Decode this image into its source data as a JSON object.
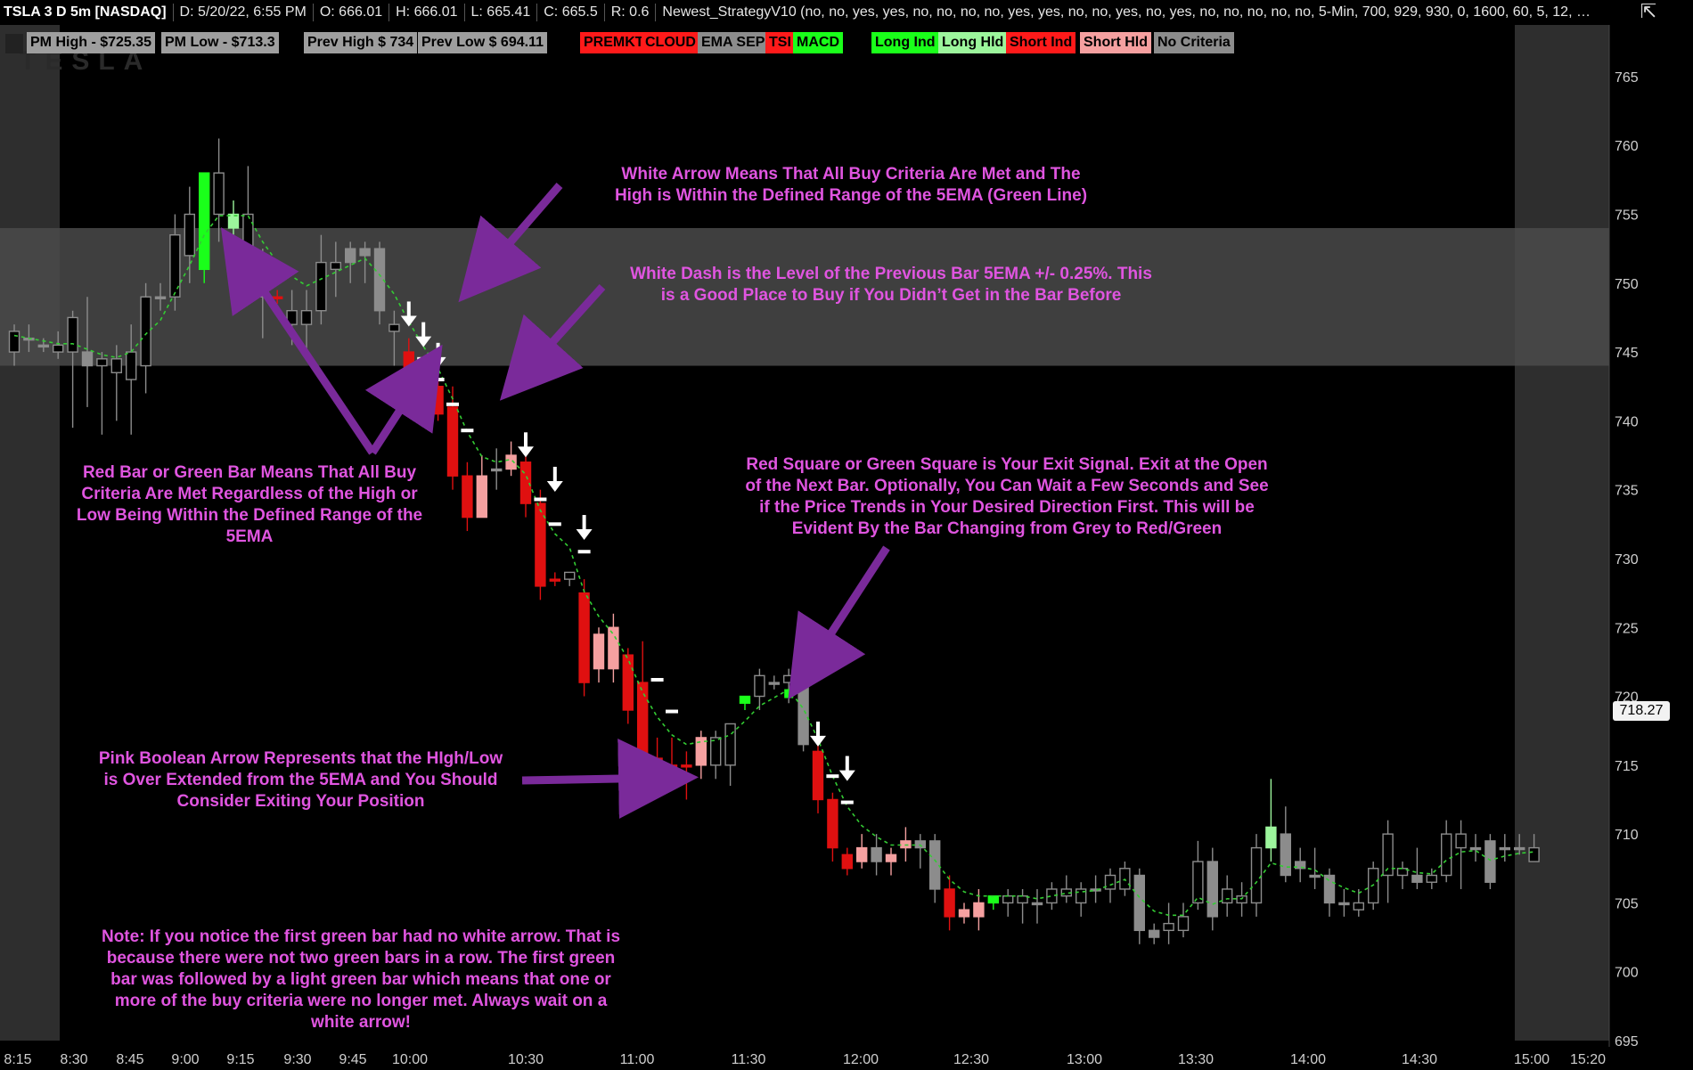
{
  "header": {
    "symbol": "TSLA 3 D 5m [NASDAQ]",
    "date": "D: 5/20/22, 6:55 PM",
    "open": "O: 666.01",
    "high": "H: 666.01",
    "low": "L: 665.41",
    "close": "C: 665.5",
    "range": "R: 0.6",
    "study": "Newest_StrategyV10 (no, no, yes, yes, no, no, no, no, yes, yes, no, no, yes, no, yes, no, no, no, no, no, 5-Min, 700, 929, 930, 0, 1600, 60, 5, 12, 34,..."
  },
  "watermark": "TESLA",
  "labels": [
    {
      "text": "PM High - $725.35",
      "bg": "#9e9e9e",
      "fg": "#000000"
    },
    {
      "text": "PM Low - $713.3",
      "bg": "#9e9e9e",
      "fg": "#000000"
    },
    {
      "text": "Prev High $ 734",
      "bg": "#9e9e9e",
      "fg": "#000000"
    },
    {
      "text": "Prev Low $ 694.11",
      "bg": "#9e9e9e",
      "fg": "#000000"
    },
    {
      "text": "PREMKT",
      "bg": "#ff1a1a",
      "fg": "#000000"
    },
    {
      "text": "CLOUD",
      "bg": "#ff1a1a",
      "fg": "#000000"
    },
    {
      "text": "EMA SEP",
      "bg": "#8c8c8c",
      "fg": "#000000"
    },
    {
      "text": "TSI",
      "bg": "#ff1a1a",
      "fg": "#000000"
    },
    {
      "text": "MACD",
      "bg": "#1aff1a",
      "fg": "#000000"
    },
    {
      "text": "Long Ind",
      "bg": "#1aff1a",
      "fg": "#000000"
    },
    {
      "text": "Long Hld",
      "bg": "#9cf59c",
      "fg": "#000000"
    },
    {
      "text": "Short Ind",
      "bg": "#ff1a1a",
      "fg": "#000000"
    },
    {
      "text": "Short Hld",
      "bg": "#f5a0a0",
      "fg": "#000000"
    },
    {
      "text": "No Criteria",
      "bg": "#8c8c8c",
      "fg": "#000000"
    }
  ],
  "price_tag": "718.27",
  "notes": {
    "white_arrow": "White Arrow Means That All Buy Criteria Are Met and The\nHigh is Within the Defined Range of the 5EMA (Green Line)",
    "white_dash": "White Dash is the Level of the Previous Bar 5EMA +/- 0.25%. This\nis a Good Place to Buy if You Didn’t Get in the Bar Before",
    "red_green_bar": "Red Bar or Green Bar Means That All Buy\nCriteria Are Met Regardless of the High or\nLow Being Within the Defined Range of the\n5EMA",
    "exit_square": "Red Square or Green Square is Your Exit Signal. Exit at the Open\nof the Next Bar. Optionally, You Can Wait a Few Seconds and See\nif the Price Trends in Your Desired Direction First. This will be\nEvident By the Bar Changing from Grey to Red/Green",
    "pink_arrow": "Pink Boolean Arrow Represents that the HIgh/Low\nis Over Extended from the 5EMA and You Should\nConsider Exiting Your Position",
    "first_green": "Note: If you notice the first green bar had no white arrow. That is\nbecause there were not two green bars in a row. The first green\nbar was followed by a light green bar which means that one or\nmore of the buy criteria were no longer met. Always wait on a\nwhite arrow!"
  },
  "colors": {
    "background": "#000000",
    "cloud_band": "#4a4a4a",
    "premarket_shade": "#2e2e2e",
    "ema": "#33cc33",
    "annotation": "#e055e0",
    "arrow": "#7a2a9a",
    "candle_grey": "#8c8c8c",
    "candle_red": "#e01010",
    "candle_pink": "#f5a0a0",
    "candle_green": "#1aff1a",
    "candle_lightgreen": "#9cf59c"
  },
  "chart_data": {
    "type": "candlestick",
    "title": "TSLA 3 D 5m [NASDAQ]",
    "ylim": [
      695,
      767
    ],
    "y_ticks": [
      695,
      700,
      705,
      710,
      715,
      720,
      725,
      730,
      735,
      740,
      745,
      750,
      755,
      760,
      765
    ],
    "x_ticks": [
      "8:15",
      "8:30",
      "8:45",
      "9:00",
      "9:15",
      "9:30",
      "9:45",
      "10:00",
      "10:30",
      "11:00",
      "11:30",
      "12:00",
      "12:30",
      "13:00",
      "13:30",
      "14:00",
      "14:30",
      "15:00",
      "15:20"
    ],
    "cloud_band": [
      744,
      754
    ],
    "current_price": 718.27,
    "candles": [
      {
        "o": 745,
        "h": 747,
        "l": 744,
        "c": 746.5,
        "col": "grey"
      },
      {
        "o": 746,
        "h": 747,
        "l": 745,
        "c": 746,
        "col": "grey"
      },
      {
        "o": 745.5,
        "h": 746,
        "l": 745,
        "c": 745.5,
        "col": "grey"
      },
      {
        "o": 745,
        "h": 746.5,
        "l": 744.5,
        "c": 745.5,
        "col": "grey"
      },
      {
        "o": 745,
        "h": 748,
        "l": 739.5,
        "c": 747.5,
        "col": "grey"
      },
      {
        "o": 745,
        "h": 749,
        "l": 741,
        "c": 744,
        "col": "grey"
      },
      {
        "o": 744,
        "h": 745,
        "l": 739,
        "c": 744.5,
        "col": "grey"
      },
      {
        "o": 743.5,
        "h": 745.5,
        "l": 740,
        "c": 744.5,
        "col": "grey"
      },
      {
        "o": 743,
        "h": 747,
        "l": 739,
        "c": 745,
        "col": "grey"
      },
      {
        "o": 744,
        "h": 750,
        "l": 742,
        "c": 749,
        "col": "grey"
      },
      {
        "o": 749,
        "h": 750,
        "l": 748,
        "c": 749,
        "col": "grey"
      },
      {
        "o": 749,
        "h": 755,
        "l": 748,
        "c": 753.5,
        "col": "grey"
      },
      {
        "o": 752,
        "h": 757,
        "l": 750,
        "c": 755,
        "col": "grey"
      },
      {
        "o": 751,
        "h": 758,
        "l": 750,
        "c": 758,
        "col": "green"
      },
      {
        "o": 755,
        "h": 760.5,
        "l": 753,
        "c": 758,
        "col": "grey"
      },
      {
        "o": 754,
        "h": 756,
        "l": 753,
        "c": 755,
        "col": "lightgreen"
      },
      {
        "o": 752.5,
        "h": 758.5,
        "l": 751,
        "c": 755,
        "col": "grey"
      },
      {
        "o": 751,
        "h": 752.5,
        "l": 746,
        "c": 749,
        "col": "grey"
      },
      {
        "o": 749,
        "h": 749.5,
        "l": 748.5,
        "c": 749,
        "col": "red"
      },
      {
        "o": 747,
        "h": 749.5,
        "l": 745.5,
        "c": 748,
        "col": "grey"
      },
      {
        "o": 747,
        "h": 749.5,
        "l": 745,
        "c": 748,
        "col": "grey"
      },
      {
        "o": 748,
        "h": 753.5,
        "l": 747,
        "c": 751.5,
        "col": "grey"
      },
      {
        "o": 751,
        "h": 753,
        "l": 749,
        "c": 751.5,
        "col": "grey"
      },
      {
        "o": 752.5,
        "h": 753,
        "l": 750,
        "c": 751.5,
        "col": "grey"
      },
      {
        "o": 752.5,
        "h": 753,
        "l": 750,
        "c": 752,
        "col": "grey"
      },
      {
        "o": 752.5,
        "h": 753,
        "l": 747,
        "c": 748,
        "col": "grey"
      },
      {
        "o": 746.5,
        "h": 748,
        "l": 744,
        "c": 747,
        "col": "grey"
      },
      {
        "o": 745,
        "h": 746,
        "l": 743,
        "c": 743.5,
        "col": "red"
      },
      {
        "o": 743.5,
        "h": 744,
        "l": 741,
        "c": 742,
        "col": "red"
      },
      {
        "o": 742.5,
        "h": 743.5,
        "l": 740,
        "c": 740.5,
        "col": "red"
      },
      {
        "o": 741,
        "h": 742.5,
        "l": 735,
        "c": 736,
        "col": "red"
      },
      {
        "o": 736,
        "h": 737,
        "l": 732,
        "c": 733,
        "col": "red"
      },
      {
        "o": 736,
        "h": 737.5,
        "l": 733,
        "c": 733,
        "col": "pink"
      },
      {
        "o": 736.5,
        "h": 738,
        "l": 735,
        "c": 736.5,
        "col": "grey"
      },
      {
        "o": 736.5,
        "h": 738.5,
        "l": 736,
        "c": 737.5,
        "col": "pink"
      },
      {
        "o": 737,
        "h": 738,
        "l": 733,
        "c": 734,
        "col": "red"
      },
      {
        "o": 734,
        "h": 735,
        "l": 727,
        "c": 728,
        "col": "red"
      },
      {
        "o": 728.5,
        "h": 729,
        "l": 728,
        "c": 728.5,
        "col": "red"
      },
      {
        "o": 728.5,
        "h": 729,
        "l": 728,
        "c": 729,
        "col": "grey"
      },
      {
        "o": 727.5,
        "h": 728.5,
        "l": 720,
        "c": 721,
        "col": "red"
      },
      {
        "o": 724.5,
        "h": 725,
        "l": 721,
        "c": 722,
        "col": "pink"
      },
      {
        "o": 725,
        "h": 726,
        "l": 721,
        "c": 722,
        "col": "pink"
      },
      {
        "o": 723,
        "h": 723.5,
        "l": 718,
        "c": 719,
        "col": "red"
      },
      {
        "o": 721,
        "h": 724,
        "l": 715,
        "c": 715.5,
        "col": "red"
      },
      {
        "o": 715.5,
        "h": 717,
        "l": 714.5,
        "c": 715,
        "col": "red"
      },
      {
        "o": 715,
        "h": 717,
        "l": 714,
        "c": 714.5,
        "col": "red"
      },
      {
        "o": 715,
        "h": 716,
        "l": 712.5,
        "c": 715,
        "col": "red"
      },
      {
        "o": 715,
        "h": 717.5,
        "l": 714,
        "c": 717,
        "col": "pink"
      },
      {
        "o": 715,
        "h": 717.5,
        "l": 714,
        "c": 717,
        "col": "grey"
      },
      {
        "o": 715,
        "h": 718,
        "l": 713.5,
        "c": 718,
        "col": "grey"
      },
      {
        "o": 719.5,
        "h": 720,
        "l": 719,
        "c": 720,
        "col": "green"
      },
      {
        "o": 720,
        "h": 722,
        "l": 719,
        "c": 721.5,
        "col": "grey"
      },
      {
        "o": 721,
        "h": 721.5,
        "l": 720.5,
        "c": 721,
        "col": "grey"
      },
      {
        "o": 721,
        "h": 722,
        "l": 719.5,
        "c": 721.5,
        "col": "grey"
      },
      {
        "o": 721,
        "h": 721.5,
        "l": 716,
        "c": 716.5,
        "col": "grey"
      },
      {
        "o": 716,
        "h": 717,
        "l": 711.5,
        "c": 712.5,
        "col": "red"
      },
      {
        "o": 712.5,
        "h": 713,
        "l": 708,
        "c": 709,
        "col": "red"
      },
      {
        "o": 708.5,
        "h": 709,
        "l": 707,
        "c": 707.5,
        "col": "red"
      },
      {
        "o": 709,
        "h": 710,
        "l": 707.5,
        "c": 708,
        "col": "pink"
      },
      {
        "o": 709,
        "h": 710,
        "l": 707,
        "c": 708,
        "col": "grey"
      },
      {
        "o": 708.5,
        "h": 709,
        "l": 707,
        "c": 708,
        "col": "pink"
      },
      {
        "o": 709,
        "h": 710.5,
        "l": 708,
        "c": 709.5,
        "col": "pink"
      },
      {
        "o": 709.5,
        "h": 710,
        "l": 707.5,
        "c": 709,
        "col": "grey"
      },
      {
        "o": 709.5,
        "h": 710,
        "l": 705,
        "c": 706,
        "col": "grey"
      },
      {
        "o": 706,
        "h": 707,
        "l": 703,
        "c": 704,
        "col": "red"
      },
      {
        "o": 704.5,
        "h": 705,
        "l": 703.5,
        "c": 704,
        "col": "pink"
      },
      {
        "o": 704,
        "h": 706,
        "l": 703,
        "c": 705,
        "col": "pink"
      },
      {
        "o": 705,
        "h": 705.5,
        "l": 704.5,
        "c": 705.5,
        "col": "green"
      },
      {
        "o": 705,
        "h": 706,
        "l": 704,
        "c": 705.5,
        "col": "grey"
      },
      {
        "o": 705,
        "h": 706,
        "l": 703.5,
        "c": 705.5,
        "col": "grey"
      },
      {
        "o": 705,
        "h": 706,
        "l": 703.5,
        "c": 705,
        "col": "grey"
      },
      {
        "o": 705,
        "h": 706.5,
        "l": 704.5,
        "c": 706,
        "col": "grey"
      },
      {
        "o": 705.5,
        "h": 707,
        "l": 705,
        "c": 706,
        "col": "grey"
      },
      {
        "o": 705,
        "h": 706.5,
        "l": 704,
        "c": 706,
        "col": "grey"
      },
      {
        "o": 706,
        "h": 707,
        "l": 705,
        "c": 706,
        "col": "grey"
      },
      {
        "o": 706,
        "h": 707.5,
        "l": 705,
        "c": 707,
        "col": "grey"
      },
      {
        "o": 706,
        "h": 708,
        "l": 705.5,
        "c": 707.5,
        "col": "grey"
      },
      {
        "o": 707,
        "h": 707.5,
        "l": 702,
        "c": 703,
        "col": "grey"
      },
      {
        "o": 703,
        "h": 703.5,
        "l": 702,
        "c": 702.5,
        "col": "grey"
      },
      {
        "o": 703,
        "h": 705,
        "l": 702,
        "c": 703.5,
        "col": "grey"
      },
      {
        "o": 703,
        "h": 705,
        "l": 702.5,
        "c": 704,
        "col": "grey"
      },
      {
        "o": 705,
        "h": 709.5,
        "l": 704.5,
        "c": 708,
        "col": "grey"
      },
      {
        "o": 708,
        "h": 709,
        "l": 703,
        "c": 704,
        "col": "grey"
      },
      {
        "o": 705,
        "h": 707,
        "l": 704,
        "c": 706,
        "col": "grey"
      },
      {
        "o": 705,
        "h": 706.5,
        "l": 704,
        "c": 705.5,
        "col": "grey"
      },
      {
        "o": 705,
        "h": 710,
        "l": 704,
        "c": 709,
        "col": "grey"
      },
      {
        "o": 709,
        "h": 714,
        "l": 708,
        "c": 710.5,
        "col": "lightgreen"
      },
      {
        "o": 710,
        "h": 712,
        "l": 706.5,
        "c": 707,
        "col": "grey"
      },
      {
        "o": 708,
        "h": 709,
        "l": 706.5,
        "c": 707.5,
        "col": "grey"
      },
      {
        "o": 707,
        "h": 709,
        "l": 706,
        "c": 707,
        "col": "grey"
      },
      {
        "o": 707,
        "h": 707.5,
        "l": 704,
        "c": 705,
        "col": "grey"
      },
      {
        "o": 705,
        "h": 706,
        "l": 704,
        "c": 705,
        "col": "grey"
      },
      {
        "o": 704.5,
        "h": 706,
        "l": 704,
        "c": 705,
        "col": "grey"
      },
      {
        "o": 705,
        "h": 708,
        "l": 704.5,
        "c": 707.5,
        "col": "grey"
      },
      {
        "o": 707,
        "h": 711,
        "l": 705,
        "c": 710,
        "col": "grey"
      },
      {
        "o": 707,
        "h": 708,
        "l": 706,
        "c": 707.5,
        "col": "grey"
      },
      {
        "o": 707,
        "h": 709,
        "l": 706,
        "c": 706.5,
        "col": "grey"
      },
      {
        "o": 706.5,
        "h": 707.5,
        "l": 706,
        "c": 707,
        "col": "grey"
      },
      {
        "o": 707,
        "h": 711,
        "l": 706.5,
        "c": 710,
        "col": "grey"
      },
      {
        "o": 709,
        "h": 711,
        "l": 706,
        "c": 710,
        "col": "grey"
      },
      {
        "o": 709,
        "h": 710,
        "l": 708,
        "c": 709,
        "col": "grey"
      },
      {
        "o": 709.5,
        "h": 710,
        "l": 706,
        "c": 706.5,
        "col": "grey"
      },
      {
        "o": 709,
        "h": 710,
        "l": 708,
        "c": 709,
        "col": "grey"
      },
      {
        "o": 709,
        "h": 710,
        "l": 708.5,
        "c": 709,
        "col": "grey"
      },
      {
        "o": 708,
        "h": 710,
        "l": 708,
        "c": 709,
        "col": "grey"
      }
    ],
    "ema": [
      746.2,
      746,
      745.8,
      745.6,
      745.6,
      745.2,
      744.8,
      744.6,
      745,
      746.3,
      747.3,
      749.3,
      751.3,
      753.5,
      754.9,
      754.9,
      754.9,
      753,
      751.5,
      750.5,
      749.8,
      750.3,
      750.8,
      751.3,
      751.8,
      750.6,
      749.2,
      747.2,
      745.4,
      743.8,
      741.6,
      739.2,
      737.4,
      737,
      737.2,
      736.1,
      733.5,
      731.8,
      730.8,
      727.6,
      725.8,
      724.5,
      722.7,
      720.3,
      718.5,
      717.2,
      716.5,
      716.7,
      716.8,
      717.2,
      718.2,
      719.3,
      719.9,
      720.5,
      719.1,
      716.9,
      714.2,
      712,
      710.6,
      709.8,
      709.2,
      709.2,
      709.2,
      708.1,
      706.7,
      705.8,
      705.5,
      705.5,
      705.5,
      705.5,
      705.3,
      705.5,
      705.7,
      705.8,
      705.9,
      706.3,
      706.7,
      705.4,
      704.4,
      704.1,
      704.1,
      705.4,
      704.9,
      705.3,
      705.3,
      706.5,
      707.9,
      707.6,
      707.6,
      707.4,
      706.6,
      706.1,
      705.7,
      706.3,
      707.5,
      707.5,
      707.2,
      707.1,
      708.1,
      708.7,
      708.8,
      708.1,
      708.4,
      708.6,
      708.7
    ],
    "white_arrows": [
      {
        "i": 27,
        "y": 747.5
      },
      {
        "i": 28,
        "y": 746
      },
      {
        "i": 29,
        "y": 744.5
      },
      {
        "i": 35,
        "y": 738
      },
      {
        "i": 37,
        "y": 735.5
      },
      {
        "i": 39,
        "y": 732
      },
      {
        "i": 55,
        "y": 717
      },
      {
        "i": 57,
        "y": 714.5
      }
    ],
    "white_dashes": [
      {
        "i": 28,
        "y": 744.5
      },
      {
        "i": 29,
        "y": 743
      },
      {
        "i": 30,
        "y": 741.2
      },
      {
        "i": 31,
        "y": 739.3
      },
      {
        "i": 36,
        "y": 734.3
      },
      {
        "i": 37,
        "y": 732.5
      },
      {
        "i": 39,
        "y": 730.5
      },
      {
        "i": 44,
        "y": 721.2
      },
      {
        "i": 45,
        "y": 718.9
      },
      {
        "i": 56,
        "y": 714.2
      },
      {
        "i": 57,
        "y": 712.3
      }
    ],
    "pink_arrow": {
      "i": 44,
      "y": 713.5
    },
    "exit_square": {
      "i": 53,
      "y": 720
    }
  }
}
